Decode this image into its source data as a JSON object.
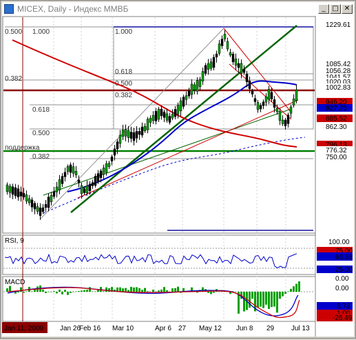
{
  "window": {
    "title": "MICEX, Daily - Индекс ММВБ",
    "controls": {
      "minimize": "_",
      "maximize": "□",
      "close": "✕"
    }
  },
  "chart": {
    "type": "candlestick",
    "fib_levels": [
      {
        "label": "0.500"
      },
      {
        "label": "1.000"
      },
      {
        "label": "1.000"
      },
      {
        "label": "0.382"
      },
      {
        "label": "0.618"
      },
      {
        "label": "0.500"
      },
      {
        "label": "0.382"
      },
      {
        "label": "0.618"
      },
      {
        "label": "0.500"
      },
      {
        "label": "0.382"
      }
    ],
    "support_label": "поддержка",
    "price_tags": [
      {
        "value": "1229.61",
        "bg": "#ffffff",
        "fg": "#000000"
      },
      {
        "value": "1085.42",
        "bg": "#ffffff",
        "fg": "#000000"
      },
      {
        "value": "1056.28",
        "bg": "#ffffff",
        "fg": "#000000"
      },
      {
        "value": "1041.57",
        "bg": "#ffffff",
        "fg": "#000000"
      },
      {
        "value": "1020.03",
        "bg": "#ffffff",
        "fg": "#000000"
      },
      {
        "value": "1002.83",
        "bg": "#ffffff",
        "fg": "#000000"
      },
      {
        "value": "946.20",
        "bg": "#cc0000",
        "fg": "#ffffff"
      },
      {
        "value": "927.75",
        "bg": "#0000cc",
        "fg": "#ffffff"
      },
      {
        "value": "885.52",
        "bg": "#cc0000",
        "fg": "#ffffff"
      },
      {
        "value": "862.30",
        "bg": "#ffffff",
        "fg": "#000000"
      },
      {
        "value": "796.13",
        "bg": "#cc0000",
        "fg": "#ffffff"
      },
      {
        "value": "776.32",
        "bg": "#ffffff",
        "fg": "#000000"
      },
      {
        "value": "750.00",
        "bg": "#ffffff",
        "fg": "#000000"
      }
    ]
  },
  "rsi": {
    "label": "RSI, 9",
    "axis": [
      "100.00",
      "75.00",
      "63.58",
      "25.00",
      "0.00"
    ]
  },
  "macd": {
    "label": "MACD",
    "axis": [
      "0.00",
      "5.73",
      "1.00",
      "-26.49"
    ]
  },
  "time_axis": {
    "start": "Jan 11, 2009",
    "labels": [
      "Jan 26",
      "Feb 16",
      "Mar 10",
      "Apr 6",
      "27",
      "May 12",
      "Jun 8",
      "29",
      "Jul 13"
    ]
  },
  "colors": {
    "background": "#ffffff",
    "bull_candle": "#008000",
    "bear_candle": "#000000",
    "sma_red": "#d00000",
    "sma_blue": "#0000cc",
    "trend_green": "#006400",
    "resistance": "#8b0000",
    "support_line": "#008000"
  }
}
